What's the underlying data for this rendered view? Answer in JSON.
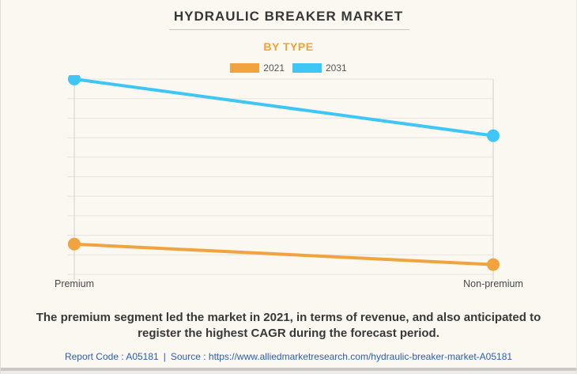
{
  "header": {
    "title": "HYDRAULIC BREAKER MARKET",
    "subtitle": "BY TYPE"
  },
  "chart_data": {
    "type": "line",
    "categories": [
      "Premium",
      "Non-premium"
    ],
    "series": [
      {
        "name": "2021",
        "color": "#F0A33E",
        "values": [
          15.5,
          5
        ]
      },
      {
        "name": "2031",
        "color": "#3EC6F4",
        "values": [
          100,
          71
        ]
      }
    ],
    "title": "HYDRAULIC BREAKER MARKET",
    "subtitle": "BY TYPE",
    "xlabel": "",
    "ylabel": "",
    "ylim": [
      0,
      100
    ],
    "grid": true,
    "gridline_count": 11,
    "legend_position": "top",
    "y_axis_labels_visible": false
  },
  "description": {
    "text": "The premium segment led the market in 2021, in terms of revenue, and also anticipated to register the highest CAGR during the forecast period."
  },
  "footer": {
    "report_code": "Report Code : A05181",
    "separator": "|",
    "source_label": "Source :",
    "source_url": "https://www.alliedmarketresearch.com/hydraulic-breaker-market-A05181"
  },
  "colors": {
    "background": "#FAF8F1",
    "accent_orange": "#F6A12D",
    "series_2021": "#F0A33E",
    "series_2031": "#3EC6F4",
    "gridline": "#E6E4DC",
    "category_line": "#D3D1CA",
    "footer_link": "#2A5DB4",
    "text_dark": "#383838"
  }
}
